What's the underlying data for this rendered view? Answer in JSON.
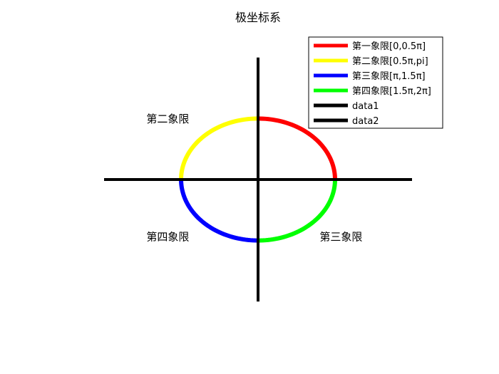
{
  "chart_data": {
    "type": "line",
    "title": "极坐标系",
    "xlabel": "",
    "ylabel": "",
    "axes_visible": false,
    "grid": false,
    "xlim": [
      -2.0,
      2.0
    ],
    "ylim": [
      -1.6,
      1.6
    ],
    "series": [
      {
        "name": "第一象限[0,0.5π]",
        "color": "#ff0000",
        "kind": "arc",
        "theta_start_pi": 0.0,
        "theta_end_pi": 0.5,
        "rx": 1,
        "ry": 0.8
      },
      {
        "name": "第二象限[0.5π,pi]",
        "color": "#ffff00",
        "kind": "arc",
        "theta_start_pi": 0.5,
        "theta_end_pi": 1.0,
        "rx": 1,
        "ry": 0.8
      },
      {
        "name": "第三象限[π,1.5π]",
        "color": "#0000ff",
        "kind": "arc",
        "theta_start_pi": 1.0,
        "theta_end_pi": 1.5,
        "rx": 1,
        "ry": 0.8
      },
      {
        "name": "第四象限[1.5π,2π]",
        "color": "#00ff00",
        "kind": "arc",
        "theta_start_pi": 1.5,
        "theta_end_pi": 2.0,
        "rx": 1,
        "ry": 0.8
      },
      {
        "name": "data1",
        "color": "#000000",
        "kind": "line",
        "x": [
          -2,
          2
        ],
        "y": [
          0,
          0
        ]
      },
      {
        "name": "data2",
        "color": "#000000",
        "kind": "line",
        "x": [
          0,
          0
        ],
        "y": [
          -1.6,
          1.6
        ]
      }
    ],
    "annotations": [
      {
        "text": "第二象限",
        "x": -1.45,
        "y": 0.75
      },
      {
        "text": "第四象限",
        "x": -1.45,
        "y": -0.8
      },
      {
        "text": "第三象限",
        "x": 0.8,
        "y": -0.8
      }
    ],
    "legend": {
      "placement": "top-right"
    }
  }
}
